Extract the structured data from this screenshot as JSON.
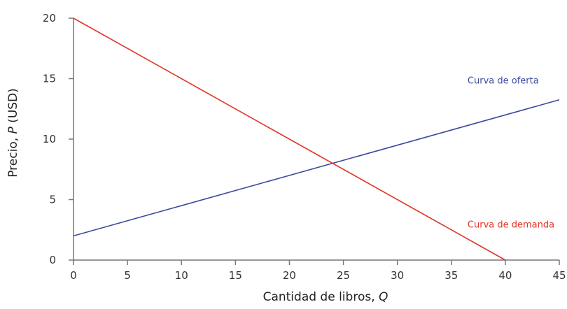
{
  "chart_data": {
    "type": "line",
    "title": "",
    "xlabel": "Cantidad de libros, ",
    "xlabel_var": "Q",
    "ylabel": "Precio, ",
    "ylabel_var": "P",
    "ylabel_unit": " (USD)",
    "xlim": [
      0,
      45
    ],
    "ylim": [
      0,
      20
    ],
    "xticks": [
      0,
      5,
      10,
      15,
      20,
      25,
      30,
      35,
      40,
      45
    ],
    "yticks": [
      0,
      5,
      10,
      15,
      20
    ],
    "grid": false,
    "series": [
      {
        "name": "Curva de oferta",
        "color": "#3d4b9e",
        "x": [
          0,
          45
        ],
        "y": [
          2,
          13.25
        ],
        "label_pos": [
          36.5,
          14.6
        ]
      },
      {
        "name": "Curva de demanda",
        "color": "#e03424",
        "x": [
          0,
          40
        ],
        "y": [
          20,
          0
        ],
        "label_pos": [
          36.5,
          2.7
        ]
      }
    ],
    "equilibrium": {
      "x": 24,
      "y": 8
    }
  },
  "colors": {
    "axis": "#777777",
    "supply": "#3d4b9e",
    "demand": "#e03424"
  }
}
